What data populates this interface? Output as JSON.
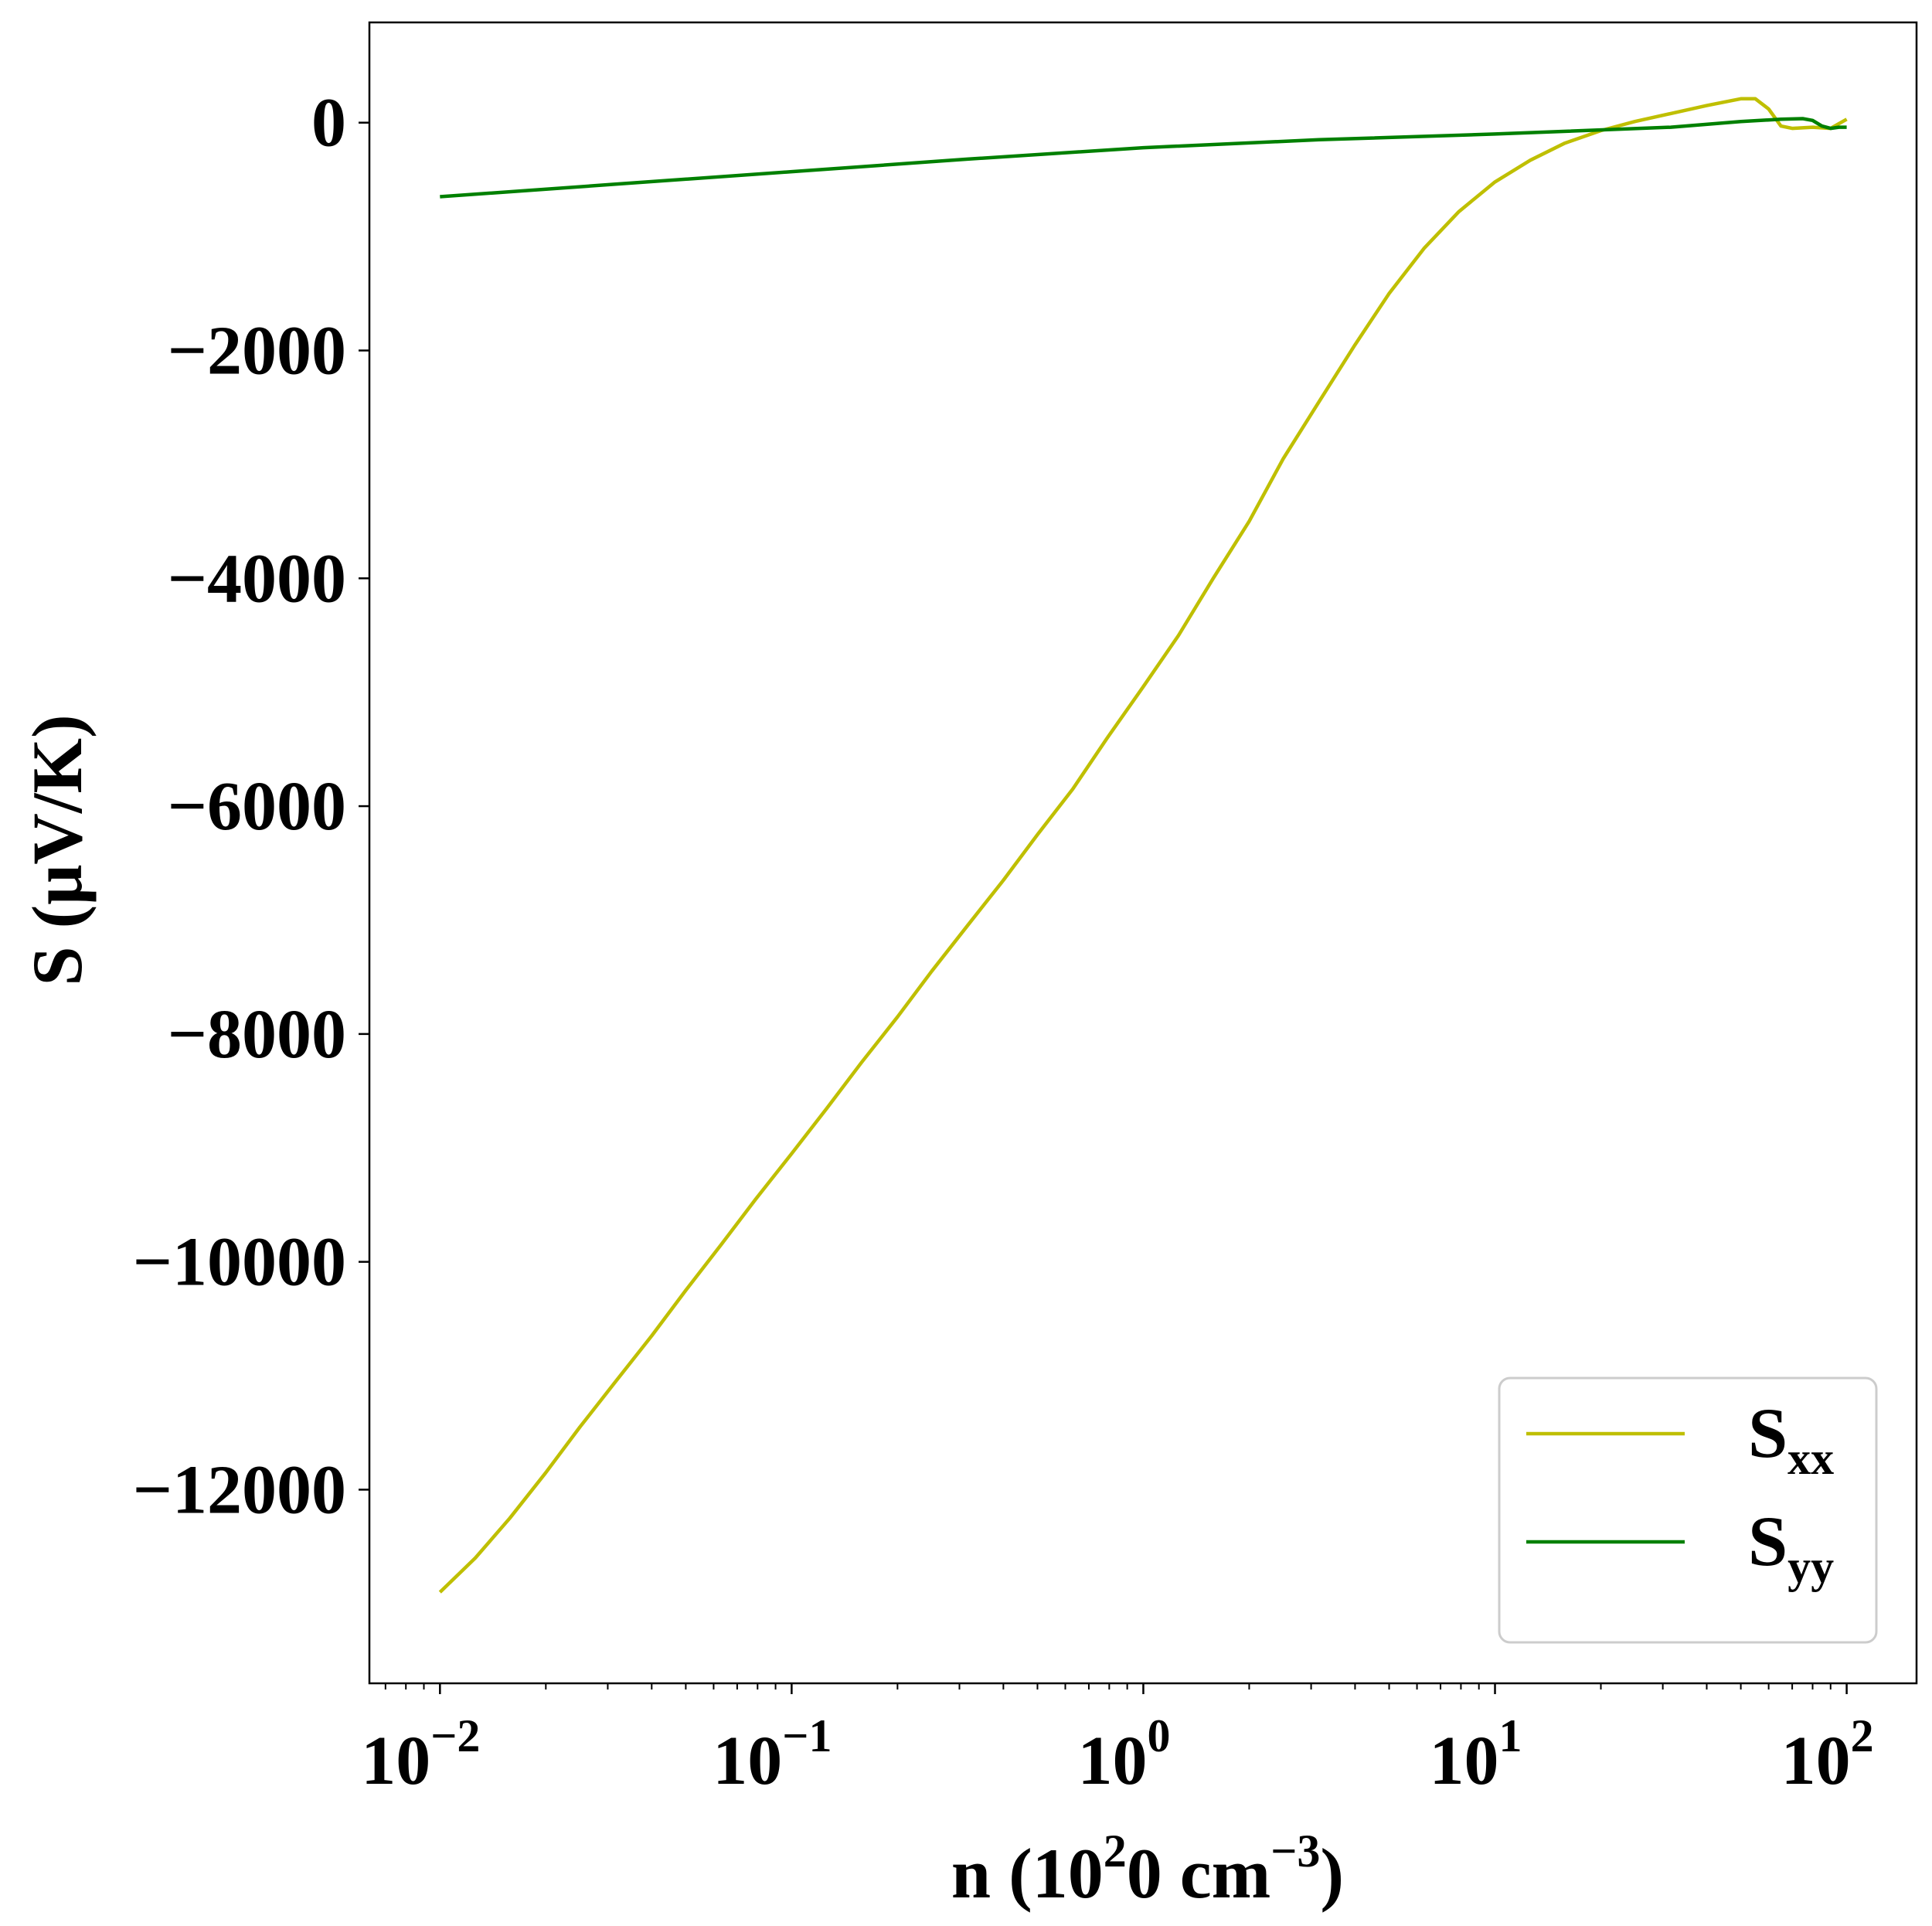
{
  "chart_data": {
    "type": "line",
    "xlabel": "n (10^20 cm^-3)",
    "ylabel": "S (μV/K)",
    "xscale": "log",
    "xlim": [
      0.0063,
      158
    ],
    "ylim": [
      -13700,
      880
    ],
    "grid": false,
    "legend_position": "lower right",
    "x_ticks": [
      {
        "base": "10",
        "exp": "−2",
        "value": 0.01
      },
      {
        "base": "10",
        "exp": "−1",
        "value": 0.1
      },
      {
        "base": "10",
        "exp": "0",
        "value": 1
      },
      {
        "base": "10",
        "exp": "1",
        "value": 10
      },
      {
        "base": "10",
        "exp": "2",
        "value": 100
      }
    ],
    "y_ticks": [
      {
        "label": "0",
        "value": 0
      },
      {
        "label": "−2000",
        "value": -2000
      },
      {
        "label": "−4000",
        "value": -4000
      },
      {
        "label": "−6000",
        "value": -6000
      },
      {
        "label": "−8000",
        "value": -8000
      },
      {
        "label": "−10000",
        "value": -10000
      },
      {
        "label": "−12000",
        "value": -12000
      }
    ],
    "series": [
      {
        "name": "S_xx",
        "label_main": "S",
        "label_sub": "xx",
        "color": "#bfbf00",
        "x": [
          0.01,
          0.0126,
          0.0158,
          0.02,
          0.025,
          0.0316,
          0.04,
          0.05,
          0.063,
          0.079,
          0.1,
          0.126,
          0.158,
          0.2,
          0.25,
          0.316,
          0.4,
          0.5,
          0.63,
          0.79,
          1.0,
          1.26,
          1.58,
          2.0,
          2.5,
          3.16,
          4.0,
          5.0,
          6.3,
          7.9,
          10,
          12.6,
          15.8,
          20,
          25,
          31.6,
          40,
          50,
          55,
          60,
          65,
          70,
          80,
          90,
          100
        ],
        "y": [
          -12900,
          -12600,
          -12250,
          -11850,
          -11450,
          -11050,
          -10650,
          -10250,
          -9850,
          -9450,
          -9050,
          -8650,
          -8250,
          -7850,
          -7450,
          -7050,
          -6650,
          -6250,
          -5850,
          -5400,
          -4950,
          -4500,
          -4000,
          -3500,
          -2950,
          -2450,
          -1950,
          -1500,
          -1100,
          -780,
          -520,
          -330,
          -180,
          -70,
          10,
          80,
          150,
          210,
          210,
          120,
          -30,
          -50,
          -40,
          -50,
          30
        ]
      },
      {
        "name": "S_yy",
        "label_main": "S",
        "label_sub": "yy",
        "color": "#008000",
        "x": [
          0.01,
          0.0316,
          0.1,
          0.316,
          1.0,
          3.16,
          10,
          31.6,
          50,
          65,
          75,
          80,
          85,
          90,
          95,
          100
        ],
        "y": [
          -650,
          -540,
          -430,
          -320,
          -220,
          -150,
          -100,
          -40,
          10,
          30,
          35,
          20,
          -30,
          -50,
          -40,
          -40
        ]
      }
    ]
  }
}
